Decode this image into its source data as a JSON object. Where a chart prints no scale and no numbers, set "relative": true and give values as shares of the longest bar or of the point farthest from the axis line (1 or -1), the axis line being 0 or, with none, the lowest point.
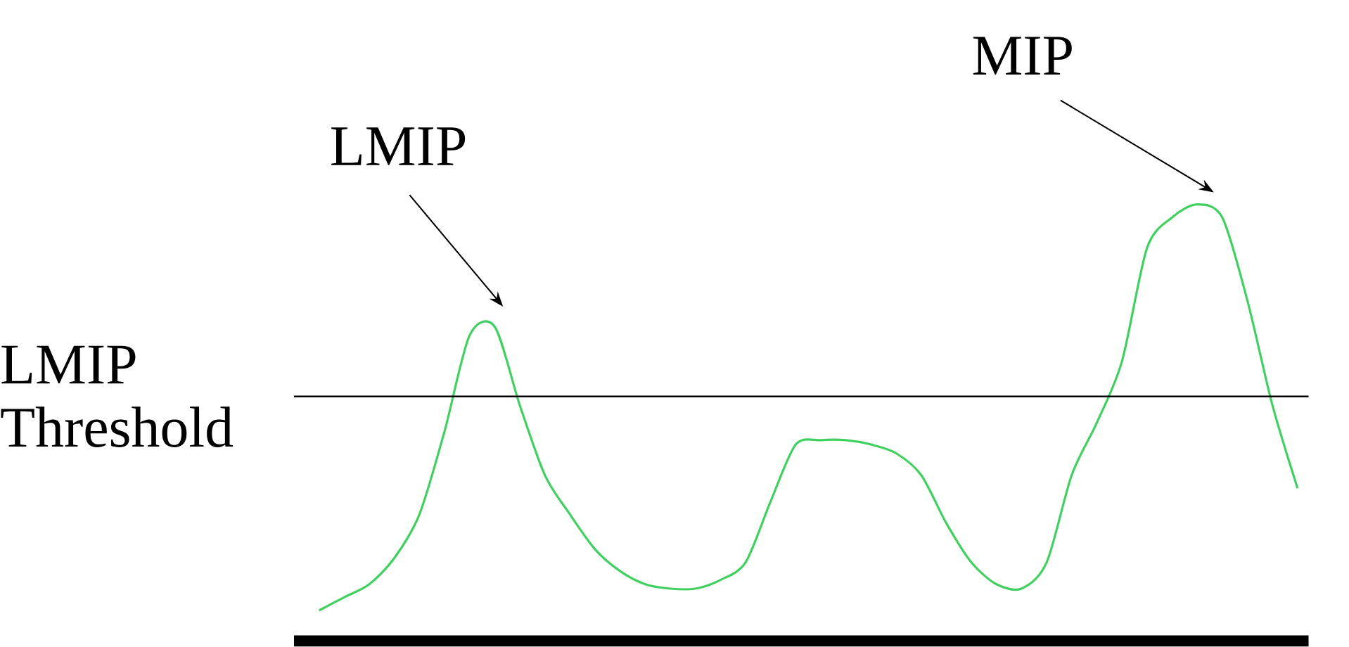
{
  "chart_data": {
    "type": "line",
    "relative": true,
    "color": "#40d060",
    "categories": [
      null,
      null,
      null,
      null,
      null,
      null,
      null,
      null,
      null,
      null,
      null,
      null,
      null,
      null,
      null,
      null,
      null,
      null,
      null,
      null,
      null,
      null,
      null,
      null,
      null,
      null,
      null,
      null,
      null,
      null,
      null,
      null,
      null,
      null,
      null,
      null,
      null,
      null,
      null,
      null
    ],
    "values": [
      0.07,
      0.1,
      0.13,
      0.19,
      0.29,
      0.48,
      0.7,
      0.72,
      0.54,
      0.38,
      0.29,
      0.21,
      0.16,
      0.13,
      0.12,
      0.12,
      0.14,
      0.18,
      0.32,
      0.45,
      0.46,
      0.46,
      0.45,
      0.43,
      0.38,
      0.27,
      0.18,
      0.13,
      0.12,
      0.18,
      0.38,
      0.5,
      0.64,
      0.9,
      0.97,
      1.0,
      0.97,
      0.78,
      0.54,
      0.35
    ],
    "ref_lines": [
      {
        "axis": "y",
        "value": 0.56,
        "label": "LMIP Threshold",
        "color": "#000000"
      }
    ],
    "annotations": [
      "LMIP",
      "MIP"
    ]
  }
}
